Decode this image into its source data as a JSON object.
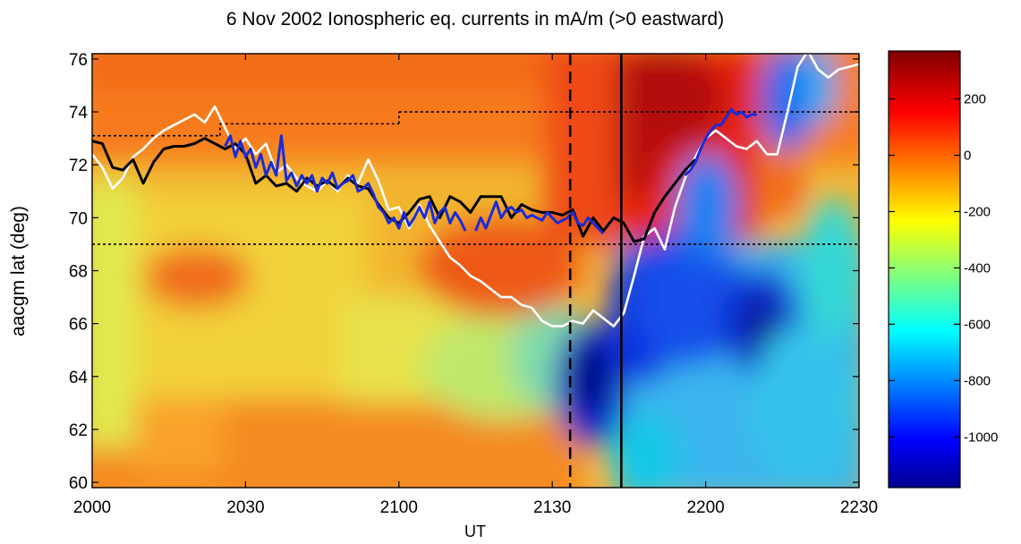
{
  "chart_data": {
    "type": "heatmap",
    "title": "6 Nov 2002 Ionospheric eq. currents in mA/m (>0 eastward)",
    "xlabel": "UT",
    "ylabel": "aacgm lat (deg)",
    "x_ticks": [
      "2000",
      "2030",
      "2100",
      "2130",
      "2200",
      "2230"
    ],
    "y_ticks": [
      60,
      62,
      64,
      66,
      68,
      70,
      72,
      74,
      76
    ],
    "ylim": [
      59.8,
      76.2
    ],
    "colorbar": {
      "colormap": "jet",
      "range": [
        -1180,
        370
      ],
      "ticks": [
        200,
        0,
        -200,
        -400,
        -600,
        -800,
        -1000
      ],
      "tick_labels": [
        "200",
        "0",
        "-200",
        "-400",
        "-600",
        "-800",
        "-1000"
      ]
    },
    "vertical_lines": [
      {
        "x_min": 93.5,
        "style": "dashed",
        "color": "#000000"
      },
      {
        "x_min": 103.5,
        "style": "solid",
        "color": "#000000"
      }
    ],
    "horizontal_dotted_lines": [
      {
        "lat": 69.0,
        "x_range_min": [
          0,
          150
        ]
      },
      {
        "lat": 73.1,
        "x_range_min": [
          0,
          25
        ]
      },
      {
        "lat": 73.55,
        "x_range_min": [
          25,
          60
        ]
      },
      {
        "lat": 74.0,
        "x_range_min": [
          60,
          150
        ]
      }
    ],
    "series": [
      {
        "color": "#ffffff",
        "points": [
          [
            0,
            72.4
          ],
          [
            2,
            71.9
          ],
          [
            4,
            71.1
          ],
          [
            6,
            71.5
          ],
          [
            8,
            72.3
          ],
          [
            10,
            72.6
          ],
          [
            12,
            73.0
          ],
          [
            14,
            73.3
          ],
          [
            16,
            73.5
          ],
          [
            18,
            73.7
          ],
          [
            20,
            73.9
          ],
          [
            22,
            73.6
          ],
          [
            24,
            74.2
          ],
          [
            26,
            73.4
          ],
          [
            28,
            72.6
          ],
          [
            30,
            73.0
          ],
          [
            32,
            72.4
          ],
          [
            34,
            72.8
          ],
          [
            36,
            71.7
          ],
          [
            38,
            72.0
          ],
          [
            40,
            71.5
          ],
          [
            42,
            71.2
          ],
          [
            44,
            71.0
          ],
          [
            46,
            71.4
          ],
          [
            48,
            71.0
          ],
          [
            50,
            71.6
          ],
          [
            52,
            71.3
          ],
          [
            54,
            72.2
          ],
          [
            56,
            71.4
          ],
          [
            58,
            70.3
          ],
          [
            60,
            70.4
          ],
          [
            62,
            69.6
          ],
          [
            64,
            70.5
          ],
          [
            66,
            69.7
          ],
          [
            68,
            69.1
          ],
          [
            70,
            68.5
          ],
          [
            72,
            68.2
          ],
          [
            74,
            67.8
          ],
          [
            76,
            67.6
          ],
          [
            78,
            67.3
          ],
          [
            80,
            67.0
          ],
          [
            82,
            67.0
          ],
          [
            84,
            66.7
          ],
          [
            86,
            66.6
          ],
          [
            88,
            66.1
          ],
          [
            90,
            65.9
          ],
          [
            92,
            65.9
          ],
          [
            94,
            66.1
          ],
          [
            96,
            66.0
          ],
          [
            98,
            66.5
          ],
          [
            100,
            66.2
          ],
          [
            102,
            65.9
          ],
          [
            104,
            66.4
          ],
          [
            106,
            67.8
          ],
          [
            108,
            69.3
          ],
          [
            110,
            69.6
          ],
          [
            112,
            68.8
          ],
          [
            114,
            70.4
          ],
          [
            116,
            71.5
          ],
          [
            118,
            72.3
          ],
          [
            120,
            73.0
          ],
          [
            122,
            73.3
          ],
          [
            124,
            73.0
          ],
          [
            126,
            72.7
          ],
          [
            128,
            72.6
          ],
          [
            130,
            72.9
          ],
          [
            132,
            72.4
          ],
          [
            134,
            72.4
          ],
          [
            136,
            74.0
          ],
          [
            138,
            75.7
          ],
          [
            140,
            76.3
          ],
          [
            142,
            75.6
          ],
          [
            144,
            75.3
          ],
          [
            146,
            75.6
          ],
          [
            148,
            75.7
          ],
          [
            150,
            75.8
          ]
        ]
      },
      {
        "color": "#000000",
        "points": [
          [
            0,
            72.9
          ],
          [
            2,
            72.8
          ],
          [
            4,
            71.9
          ],
          [
            6,
            71.8
          ],
          [
            8,
            72.2
          ],
          [
            10,
            71.3
          ],
          [
            12,
            72.1
          ],
          [
            14,
            72.6
          ],
          [
            16,
            72.7
          ],
          [
            18,
            72.7
          ],
          [
            20,
            72.8
          ],
          [
            22,
            73.0
          ],
          [
            24,
            72.8
          ],
          [
            26,
            72.6
          ],
          [
            28,
            72.8
          ],
          [
            30,
            72.4
          ],
          [
            32,
            71.3
          ],
          [
            34,
            71.6
          ],
          [
            36,
            71.2
          ],
          [
            38,
            71.3
          ],
          [
            40,
            71.0
          ],
          [
            42,
            71.5
          ],
          [
            44,
            71.2
          ],
          [
            46,
            71.4
          ],
          [
            48,
            71.1
          ],
          [
            50,
            71.5
          ],
          [
            52,
            71.2
          ],
          [
            54,
            71.1
          ],
          [
            56,
            70.5
          ],
          [
            58,
            70.0
          ],
          [
            60,
            69.8
          ],
          [
            62,
            70.2
          ],
          [
            64,
            70.7
          ],
          [
            66,
            70.8
          ],
          [
            68,
            70.0
          ],
          [
            70,
            70.8
          ],
          [
            72,
            70.6
          ],
          [
            74,
            70.2
          ],
          [
            76,
            70.8
          ],
          [
            78,
            70.8
          ],
          [
            80,
            70.8
          ],
          [
            82,
            70.0
          ],
          [
            84,
            70.5
          ],
          [
            86,
            70.3
          ],
          [
            88,
            70.2
          ],
          [
            90,
            70.2
          ],
          [
            92,
            70.1
          ],
          [
            94,
            70.3
          ],
          [
            96,
            69.3
          ],
          [
            98,
            70.0
          ],
          [
            100,
            69.5
          ],
          [
            102,
            70.0
          ],
          [
            104,
            69.8
          ],
          [
            106,
            69.1
          ],
          [
            108,
            69.2
          ],
          [
            110,
            70.2
          ],
          [
            112,
            70.8
          ],
          [
            114,
            71.3
          ],
          [
            116,
            71.8
          ],
          [
            118,
            72.2
          ]
        ]
      },
      {
        "color": "#1a2bd6",
        "points": [
          [
            26,
            72.7
          ],
          [
            27,
            73.1
          ],
          [
            28,
            72.3
          ],
          [
            29,
            72.9
          ],
          [
            30,
            72.3
          ],
          [
            31,
            72.6
          ],
          [
            32,
            71.9
          ],
          [
            33,
            72.4
          ],
          [
            34,
            71.6
          ],
          [
            35,
            72.1
          ],
          [
            36,
            71.6
          ],
          [
            37,
            73.1
          ],
          [
            38,
            71.4
          ],
          [
            39,
            71.7
          ],
          [
            40,
            71.2
          ],
          [
            41,
            71.6
          ],
          [
            42,
            71.3
          ],
          [
            43,
            71.6
          ],
          [
            44,
            71.0
          ],
          [
            45,
            71.5
          ],
          [
            46,
            71.3
          ],
          [
            47,
            71.7
          ],
          [
            48,
            71.1
          ],
          [
            49,
            71.3
          ],
          [
            50,
            71.4
          ],
          [
            51,
            71.6
          ],
          [
            52,
            71.0
          ],
          [
            53,
            71.1
          ],
          [
            54,
            71.3
          ],
          [
            55,
            70.9
          ],
          [
            56,
            70.4
          ],
          [
            57,
            70.2
          ],
          [
            58,
            69.8
          ],
          [
            59,
            70.0
          ],
          [
            60,
            69.6
          ],
          [
            61,
            70.2
          ],
          [
            62,
            69.7
          ],
          [
            63,
            70.0
          ],
          [
            64,
            70.4
          ],
          [
            65,
            70.0
          ],
          [
            66,
            70.6
          ],
          [
            67,
            69.8
          ],
          [
            68,
            70.2
          ],
          [
            69,
            70.4
          ],
          [
            70,
            69.8
          ],
          [
            71,
            70.2
          ],
          [
            72,
            69.9
          ],
          [
            73,
            69.5
          ]
        ]
      },
      {
        "color": "#1a2bd6",
        "points": [
          [
            75,
            69.5
          ],
          [
            76,
            70.0
          ],
          [
            77,
            69.6
          ],
          [
            78,
            70.1
          ],
          [
            79,
            70.6
          ],
          [
            80,
            70.0
          ],
          [
            81,
            70.3
          ],
          [
            82,
            70.4
          ],
          [
            83,
            70.2
          ],
          [
            84,
            70.3
          ],
          [
            85,
            70.0
          ],
          [
            86,
            70.1
          ],
          [
            87,
            70.0
          ],
          [
            88,
            69.9
          ],
          [
            89,
            70.2
          ],
          [
            90,
            70.0
          ],
          [
            91,
            69.8
          ],
          [
            92,
            69.9
          ],
          [
            93,
            70.0
          ],
          [
            94,
            70.2
          ],
          [
            95,
            69.8
          ],
          [
            96,
            69.7
          ],
          [
            97,
            70.0
          ],
          [
            98,
            69.8
          ],
          [
            99,
            69.6
          ],
          [
            100,
            69.4
          ]
        ]
      },
      {
        "color": "#1a2bd6",
        "points": [
          [
            116,
            71.6
          ],
          [
            117,
            71.8
          ],
          [
            118,
            72.1
          ],
          [
            119,
            72.6
          ],
          [
            120,
            73.0
          ],
          [
            121,
            73.3
          ],
          [
            122,
            73.5
          ],
          [
            123,
            73.5
          ],
          [
            124,
            73.8
          ],
          [
            125,
            74.1
          ],
          [
            126,
            73.9
          ],
          [
            127,
            74.0
          ],
          [
            128,
            73.8
          ],
          [
            129,
            73.9
          ],
          [
            130,
            73.9
          ]
        ]
      }
    ]
  }
}
